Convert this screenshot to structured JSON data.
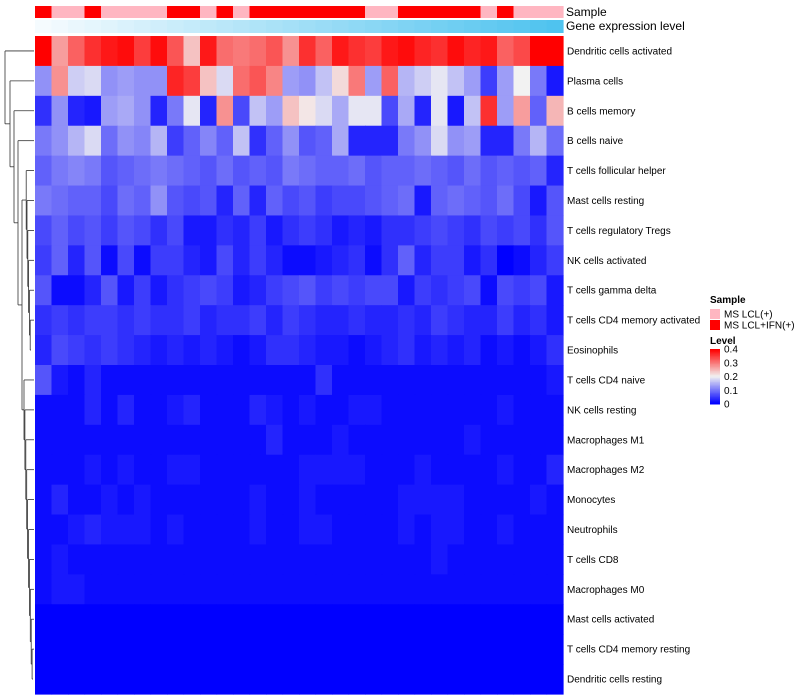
{
  "chart_data": {
    "type": "heatmap",
    "annotation_labels": {
      "sample": "Sample",
      "gene": "Gene expression level"
    },
    "rows": [
      "Dendritic cells activated",
      "Plasma cells",
      "B cells memory",
      "B cells naive",
      "T cells follicular helper",
      "Mast cells resting",
      "T cells regulatory  Tregs",
      "NK cells activated",
      "T cells gamma delta",
      "T cells CD4 memory activated",
      "Eosinophils",
      "T cells CD4 naive",
      "NK cells resting",
      "Macrophages M1",
      "Macrophages M2",
      "Monocytes",
      "Neutrophils",
      "T cells CD8",
      "Macrophages M0",
      "Mast cells activated",
      "T cells CD4 memory resting",
      "Dendritic cells resting"
    ],
    "columns_count": 32,
    "sample_annotation": [
      "IFN",
      "LCL",
      "LCL",
      "IFN",
      "LCL",
      "LCL",
      "LCL",
      "LCL",
      "IFN",
      "IFN",
      "LCL",
      "IFN",
      "LCL",
      "IFN",
      "IFN",
      "IFN",
      "IFN",
      "IFN",
      "IFN",
      "IFN",
      "LCL",
      "LCL",
      "IFN",
      "IFN",
      "IFN",
      "IFN",
      "IFN",
      "LCL",
      "IFN",
      "LCL",
      "LCL",
      "LCL"
    ],
    "gene_expression_range": [
      0,
      1
    ],
    "values": [
      [
        0.4,
        0.27,
        0.32,
        0.36,
        0.38,
        0.39,
        0.35,
        0.39,
        0.33,
        0.24,
        0.38,
        0.31,
        0.3,
        0.31,
        0.33,
        0.28,
        0.36,
        0.32,
        0.38,
        0.36,
        0.35,
        0.38,
        0.39,
        0.37,
        0.36,
        0.39,
        0.37,
        0.38,
        0.32,
        0.34,
        0.4,
        0.4
      ],
      [
        0.12,
        0.28,
        0.17,
        0.18,
        0.12,
        0.13,
        0.12,
        0.12,
        0.37,
        0.35,
        0.24,
        0.18,
        0.31,
        0.33,
        0.29,
        0.13,
        0.12,
        0.16,
        0.22,
        0.3,
        0.13,
        0.32,
        0.15,
        0.17,
        0.19,
        0.16,
        0.13,
        0.05,
        0.13,
        0.2,
        0.1,
        0.02
      ],
      [
        0.04,
        0.12,
        0.03,
        0.02,
        0.13,
        0.14,
        0.12,
        0.03,
        0.1,
        0.19,
        0.03,
        0.28,
        0.06,
        0.16,
        0.13,
        0.24,
        0.21,
        0.18,
        0.14,
        0.19,
        0.19,
        0.06,
        0.14,
        0.03,
        0.19,
        0.02,
        0.16,
        0.36,
        0.13,
        0.27,
        0.08,
        0.25
      ],
      [
        0.1,
        0.12,
        0.15,
        0.18,
        0.09,
        0.12,
        0.11,
        0.15,
        0.05,
        0.08,
        0.11,
        0.08,
        0.16,
        0.04,
        0.08,
        0.12,
        0.07,
        0.08,
        0.14,
        0.03,
        0.03,
        0.03,
        0.1,
        0.12,
        0.18,
        0.12,
        0.13,
        0.03,
        0.03,
        0.1,
        0.15,
        0.09
      ],
      [
        0.08,
        0.1,
        0.11,
        0.1,
        0.07,
        0.08,
        0.09,
        0.1,
        0.09,
        0.08,
        0.07,
        0.09,
        0.07,
        0.08,
        0.07,
        0.1,
        0.09,
        0.08,
        0.08,
        0.09,
        0.07,
        0.08,
        0.08,
        0.09,
        0.08,
        0.07,
        0.09,
        0.07,
        0.08,
        0.07,
        0.08,
        0.03
      ],
      [
        0.1,
        0.09,
        0.08,
        0.08,
        0.06,
        0.09,
        0.08,
        0.12,
        0.07,
        0.06,
        0.07,
        0.03,
        0.08,
        0.03,
        0.08,
        0.06,
        0.07,
        0.05,
        0.06,
        0.06,
        0.07,
        0.08,
        0.09,
        0.02,
        0.08,
        0.09,
        0.08,
        0.07,
        0.09,
        0.06,
        0.02,
        0.07
      ],
      [
        0.06,
        0.08,
        0.06,
        0.07,
        0.05,
        0.07,
        0.06,
        0.04,
        0.06,
        0.02,
        0.02,
        0.04,
        0.03,
        0.05,
        0.02,
        0.04,
        0.05,
        0.04,
        0.02,
        0.03,
        0.02,
        0.04,
        0.04,
        0.05,
        0.06,
        0.05,
        0.04,
        0.06,
        0.05,
        0.06,
        0.04,
        0.07
      ],
      [
        0.05,
        0.08,
        0.03,
        0.07,
        0.01,
        0.06,
        0.01,
        0.05,
        0.05,
        0.03,
        0.02,
        0.06,
        0.03,
        0.05,
        0.03,
        0.01,
        0.01,
        0.02,
        0.03,
        0.04,
        0.01,
        0.04,
        0.08,
        0.03,
        0.05,
        0.05,
        0.02,
        0.04,
        0.0,
        0.01,
        0.03,
        0.05
      ],
      [
        0.07,
        0.01,
        0.01,
        0.03,
        0.07,
        0.02,
        0.05,
        0.02,
        0.04,
        0.05,
        0.06,
        0.05,
        0.02,
        0.03,
        0.05,
        0.06,
        0.07,
        0.05,
        0.06,
        0.05,
        0.06,
        0.06,
        0.02,
        0.05,
        0.04,
        0.05,
        0.06,
        0.01,
        0.06,
        0.05,
        0.06,
        0.02
      ],
      [
        0.04,
        0.05,
        0.04,
        0.05,
        0.05,
        0.04,
        0.05,
        0.04,
        0.04,
        0.05,
        0.03,
        0.04,
        0.04,
        0.05,
        0.03,
        0.05,
        0.04,
        0.03,
        0.03,
        0.04,
        0.03,
        0.03,
        0.04,
        0.03,
        0.05,
        0.04,
        0.03,
        0.03,
        0.05,
        0.03,
        0.04,
        0.02
      ],
      [
        0.03,
        0.06,
        0.05,
        0.04,
        0.05,
        0.04,
        0.03,
        0.02,
        0.03,
        0.02,
        0.03,
        0.02,
        0.01,
        0.02,
        0.04,
        0.04,
        0.03,
        0.02,
        0.02,
        0.01,
        0.02,
        0.03,
        0.04,
        0.02,
        0.03,
        0.02,
        0.03,
        0.01,
        0.02,
        0.01,
        0.02,
        0.04
      ],
      [
        0.07,
        0.02,
        0.01,
        0.03,
        0.01,
        0.01,
        0.01,
        0.01,
        0.01,
        0.01,
        0.01,
        0.01,
        0.01,
        0.01,
        0.01,
        0.01,
        0.01,
        0.04,
        0.01,
        0.01,
        0.01,
        0.01,
        0.01,
        0.01,
        0.01,
        0.01,
        0.01,
        0.01,
        0.01,
        0.01,
        0.01,
        0.02
      ],
      [
        0.01,
        0.01,
        0.01,
        0.03,
        0.01,
        0.03,
        0.01,
        0.01,
        0.02,
        0.03,
        0.01,
        0.01,
        0.01,
        0.03,
        0.02,
        0.01,
        0.02,
        0.01,
        0.01,
        0.02,
        0.02,
        0.01,
        0.01,
        0.01,
        0.01,
        0.01,
        0.01,
        0.01,
        0.02,
        0.01,
        0.01,
        0.01
      ],
      [
        0.01,
        0.01,
        0.01,
        0.01,
        0.01,
        0.01,
        0.01,
        0.01,
        0.01,
        0.01,
        0.01,
        0.01,
        0.01,
        0.01,
        0.03,
        0.01,
        0.01,
        0.01,
        0.02,
        0.01,
        0.01,
        0.01,
        0.01,
        0.01,
        0.01,
        0.01,
        0.02,
        0.01,
        0.01,
        0.01,
        0.01,
        0.01
      ],
      [
        0.01,
        0.01,
        0.01,
        0.02,
        0.01,
        0.02,
        0.01,
        0.01,
        0.02,
        0.02,
        0.01,
        0.01,
        0.01,
        0.01,
        0.01,
        0.01,
        0.02,
        0.02,
        0.02,
        0.02,
        0.01,
        0.01,
        0.01,
        0.02,
        0.01,
        0.01,
        0.01,
        0.01,
        0.02,
        0.01,
        0.01,
        0.03
      ],
      [
        0.01,
        0.03,
        0.01,
        0.01,
        0.02,
        0.01,
        0.02,
        0.01,
        0.01,
        0.01,
        0.01,
        0.01,
        0.01,
        0.02,
        0.01,
        0.01,
        0.02,
        0.01,
        0.01,
        0.01,
        0.01,
        0.01,
        0.02,
        0.02,
        0.02,
        0.02,
        0.01,
        0.01,
        0.01,
        0.01,
        0.02,
        0.01
      ],
      [
        0.01,
        0.01,
        0.02,
        0.03,
        0.02,
        0.02,
        0.02,
        0.01,
        0.02,
        0.01,
        0.01,
        0.01,
        0.01,
        0.02,
        0.01,
        0.01,
        0.02,
        0.02,
        0.01,
        0.01,
        0.01,
        0.01,
        0.02,
        0.01,
        0.02,
        0.02,
        0.01,
        0.01,
        0.02,
        0.01,
        0.01,
        0.01
      ],
      [
        0.01,
        0.02,
        0.01,
        0.01,
        0.01,
        0.01,
        0.01,
        0.01,
        0.01,
        0.01,
        0.01,
        0.01,
        0.01,
        0.01,
        0.01,
        0.01,
        0.01,
        0.01,
        0.01,
        0.01,
        0.01,
        0.01,
        0.01,
        0.01,
        0.02,
        0.01,
        0.01,
        0.01,
        0.01,
        0.01,
        0.01,
        0.01
      ],
      [
        0.01,
        0.02,
        0.02,
        0.01,
        0.01,
        0.01,
        0.01,
        0.01,
        0.01,
        0.01,
        0.01,
        0.01,
        0.01,
        0.01,
        0.01,
        0.01,
        0.01,
        0.01,
        0.01,
        0.01,
        0.01,
        0.01,
        0.01,
        0.01,
        0.01,
        0.01,
        0.01,
        0.01,
        0.01,
        0.01,
        0.01,
        0.01
      ],
      [
        0.0,
        0.0,
        0.0,
        0.0,
        0.0,
        0.0,
        0.0,
        0.0,
        0.0,
        0.0,
        0.0,
        0.0,
        0.0,
        0.0,
        0.0,
        0.0,
        0.0,
        0.0,
        0.0,
        0.0,
        0.0,
        0.0,
        0.0,
        0.0,
        0.0,
        0.0,
        0.0,
        0.0,
        0.0,
        0.0,
        0.0,
        0.0
      ],
      [
        0.0,
        0.0,
        0.0,
        0.0,
        0.0,
        0.0,
        0.0,
        0.0,
        0.0,
        0.0,
        0.0,
        0.0,
        0.0,
        0.0,
        0.0,
        0.0,
        0.0,
        0.0,
        0.0,
        0.0,
        0.0,
        0.0,
        0.0,
        0.0,
        0.0,
        0.0,
        0.0,
        0.0,
        0.0,
        0.0,
        0.0,
        0.0
      ],
      [
        0.0,
        0.0,
        0.0,
        0.0,
        0.0,
        0.0,
        0.0,
        0.0,
        0.0,
        0.0,
        0.0,
        0.0,
        0.0,
        0.0,
        0.0,
        0.0,
        0.0,
        0.0,
        0.0,
        0.0,
        0.0,
        0.0,
        0.0,
        0.0,
        0.0,
        0.0,
        0.0,
        0.0,
        0.0,
        0.0,
        0.0,
        0.0
      ]
    ],
    "legend": {
      "sample_title": "Sample",
      "sample_items": [
        {
          "key": "LCL",
          "label": "MS LCL(+)",
          "color": "#ffb6c1"
        },
        {
          "key": "IFN",
          "label": "MS LCL+IFN(+)",
          "color": "#ff0000"
        }
      ],
      "level_title": "Level",
      "level_ticks": [
        "0.4",
        "0.3",
        "0.2",
        "0.1",
        "0"
      ],
      "level_tick_values": [
        0.4,
        0.3,
        0.2,
        0.1,
        0.0
      ],
      "level_range": [
        0,
        0.4
      ]
    },
    "colors": {
      "low": "#0000ff",
      "mid": "#f2f2f2",
      "high": "#ff0000",
      "gene_low": "#f5fbfe",
      "gene_high": "#4fc3ef",
      "dendrogram": "#333333"
    }
  }
}
